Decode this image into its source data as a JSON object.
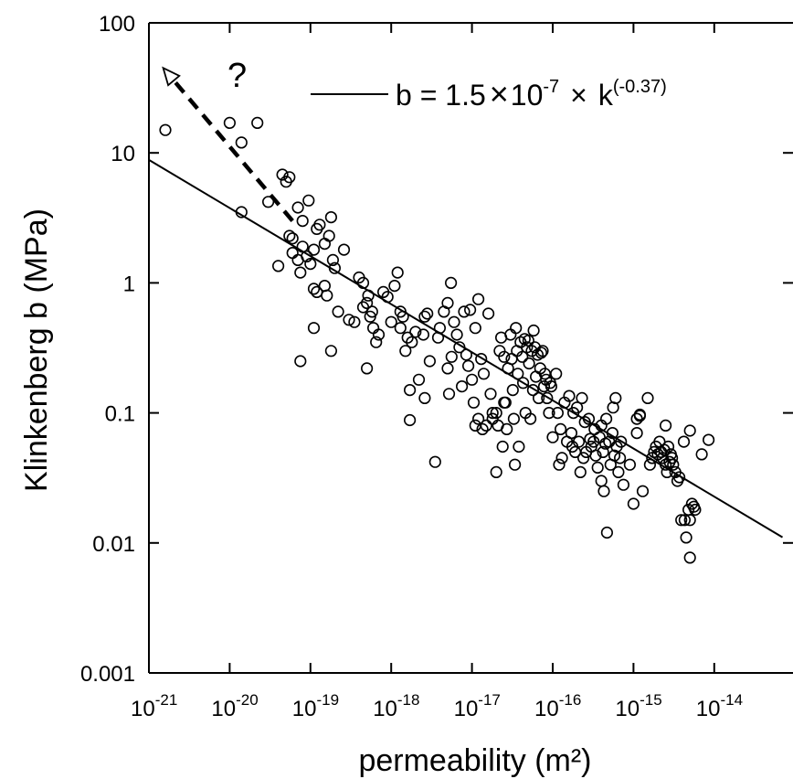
{
  "chart_data": {
    "type": "scatter",
    "title": "",
    "xlabel": "permeability (m²)",
    "ylabel": "Klinkenberg b (MPa)",
    "x_scale": "log",
    "y_scale": "log",
    "xlim": [
      1e-21,
      1e-13
    ],
    "ylim": [
      0.001,
      100
    ],
    "grid": false,
    "x_ticks": [
      {
        "base": "10",
        "exp": "-21"
      },
      {
        "base": "10",
        "exp": "-20"
      },
      {
        "base": "10",
        "exp": "-19"
      },
      {
        "base": "10",
        "exp": "-18"
      },
      {
        "base": "10",
        "exp": "-17"
      },
      {
        "base": "10",
        "exp": "-16"
      },
      {
        "base": "10",
        "exp": "-15"
      },
      {
        "base": "10",
        "exp": "-14"
      }
    ],
    "y_ticks": [
      "0.001",
      "0.01",
      "0.1",
      "1",
      "10",
      "100"
    ],
    "legend": {
      "placement": "top-right",
      "prefix": "b = 1.5",
      "times1": "×",
      "mid": "10",
      "exp1": "-7",
      "times2": "×",
      "var": "k",
      "exp2": "(-0.37)"
    },
    "fit_line": {
      "coefficient": 1.5e-07,
      "exponent": -0.37,
      "x_range": [
        1e-21,
        7e-14
      ]
    },
    "extrapolation": {
      "from": [
        6e-20,
        3.0
      ],
      "to": [
        1.5e-21,
        45
      ],
      "style": "dashed-arrow",
      "annotation": "?"
    },
    "series": [
      {
        "marker": "open-circle",
        "points": [
          [
            1.6e-21,
            15
          ],
          [
            1e-20,
            17
          ],
          [
            1.4e-20,
            12
          ],
          [
            2.2e-20,
            17
          ],
          [
            1.4e-20,
            3.5
          ],
          [
            3e-20,
            4.2
          ],
          [
            4.5e-20,
            6.8
          ],
          [
            5.5e-20,
            6.5
          ],
          [
            5e-20,
            6.0
          ],
          [
            4e-20,
            1.35
          ],
          [
            5.5e-20,
            2.3
          ],
          [
            6e-20,
            2.2
          ],
          [
            7e-20,
            3.8
          ],
          [
            8e-20,
            3.0
          ],
          [
            9.5e-20,
            4.3
          ],
          [
            6e-20,
            1.7
          ],
          [
            7e-20,
            1.5
          ],
          [
            8e-20,
            1.9
          ],
          [
            9e-20,
            1.6
          ],
          [
            1e-19,
            1.4
          ],
          [
            1.1e-19,
            1.8
          ],
          [
            1.2e-19,
            2.6
          ],
          [
            1.3e-19,
            2.8
          ],
          [
            1.5e-19,
            2.0
          ],
          [
            1.7e-19,
            2.3
          ],
          [
            1.8e-19,
            3.2
          ],
          [
            1.9e-19,
            1.5
          ],
          [
            2e-19,
            1.3
          ],
          [
            7.5e-20,
            1.2
          ],
          [
            1.1e-19,
            0.9
          ],
          [
            1.2e-19,
            0.85
          ],
          [
            1.6e-19,
            0.8
          ],
          [
            1.5e-19,
            0.95
          ],
          [
            1.1e-19,
            0.45
          ],
          [
            7.5e-20,
            0.25
          ],
          [
            1.8e-19,
            0.3
          ],
          [
            2.2e-19,
            0.6
          ],
          [
            2.6e-19,
            1.8
          ],
          [
            3e-19,
            0.52
          ],
          [
            3.5e-19,
            0.5
          ],
          [
            4e-19,
            1.1
          ],
          [
            4.5e-19,
            0.65
          ],
          [
            5e-19,
            0.7
          ],
          [
            5.5e-19,
            0.55
          ],
          [
            6e-19,
            0.45
          ],
          [
            6.5e-19,
            0.35
          ],
          [
            5e-19,
            0.22
          ],
          [
            4.5e-19,
            1.0
          ],
          [
            5.2e-19,
            0.8
          ],
          [
            5.8e-19,
            0.6
          ],
          [
            7e-19,
            0.4
          ],
          [
            8e-19,
            0.85
          ],
          [
            9e-19,
            0.78
          ],
          [
            1e-18,
            0.5
          ],
          [
            1.1e-18,
            0.95
          ],
          [
            1.2e-18,
            1.2
          ],
          [
            1.3e-18,
            0.45
          ],
          [
            1.3e-18,
            0.6
          ],
          [
            1.4e-18,
            0.55
          ],
          [
            1.5e-18,
            0.3
          ],
          [
            1.6e-18,
            0.38
          ],
          [
            1.7e-18,
            0.15
          ],
          [
            1.8e-18,
            0.35
          ],
          [
            1.7e-18,
            0.088
          ],
          [
            2e-18,
            0.42
          ],
          [
            2.2e-18,
            0.18
          ],
          [
            2.5e-18,
            0.4
          ],
          [
            2.6e-18,
            0.13
          ],
          [
            2.6e-18,
            0.55
          ],
          [
            2.8e-18,
            0.58
          ],
          [
            3e-18,
            0.25
          ],
          [
            3.5e-18,
            0.042
          ],
          [
            3.8e-18,
            0.38
          ],
          [
            4e-18,
            0.45
          ],
          [
            4.5e-18,
            0.6
          ],
          [
            5e-18,
            0.7
          ],
          [
            5e-18,
            0.22
          ],
          [
            5.2e-18,
            0.14
          ],
          [
            5.5e-18,
            1.0
          ],
          [
            5.6e-18,
            0.27
          ],
          [
            6e-18,
            0.5
          ],
          [
            6.5e-18,
            0.4
          ],
          [
            7e-18,
            0.32
          ],
          [
            7.5e-18,
            0.16
          ],
          [
            8e-18,
            0.6
          ],
          [
            8.5e-18,
            0.28
          ],
          [
            9e-18,
            0.23
          ],
          [
            9.5e-18,
            0.62
          ],
          [
            1e-17,
            0.18
          ],
          [
            1.05e-17,
            0.12
          ],
          [
            1.1e-17,
            0.45
          ],
          [
            1.1e-17,
            0.08
          ],
          [
            1.2e-17,
            0.75
          ],
          [
            1.2e-17,
            0.09
          ],
          [
            1.3e-17,
            0.26
          ],
          [
            1.35e-17,
            0.075
          ],
          [
            1.4e-17,
            0.2
          ],
          [
            1.5e-17,
            0.08
          ],
          [
            1.6e-17,
            0.58
          ],
          [
            1.7e-17,
            0.14
          ],
          [
            1.8e-17,
            0.1
          ],
          [
            1.8e-17,
            0.09
          ],
          [
            2e-17,
            0.1
          ],
          [
            2e-17,
            0.035
          ],
          [
            2.1e-17,
            0.08
          ],
          [
            2.2e-17,
            0.3
          ],
          [
            2.3e-17,
            0.38
          ],
          [
            2.4e-17,
            0.055
          ],
          [
            2.5e-17,
            0.27
          ],
          [
            2.5e-17,
            0.12
          ],
          [
            2.6e-17,
            0.12
          ],
          [
            2.7e-17,
            0.075
          ],
          [
            2.8e-17,
            0.22
          ],
          [
            3e-17,
            0.4
          ],
          [
            3.1e-17,
            0.26
          ],
          [
            3.2e-17,
            0.15
          ],
          [
            3.3e-17,
            0.09
          ],
          [
            3.4e-17,
            0.04
          ],
          [
            3.5e-17,
            0.45
          ],
          [
            3.6e-17,
            0.3
          ],
          [
            3.7e-17,
            0.2
          ],
          [
            3.8e-17,
            0.055
          ],
          [
            4e-17,
            0.35
          ],
          [
            4.2e-17,
            0.27
          ],
          [
            4.3e-17,
            0.17
          ],
          [
            4.5e-17,
            0.37
          ],
          [
            4.6e-17,
            0.1
          ],
          [
            4.8e-17,
            0.32
          ],
          [
            5e-17,
            0.36
          ],
          [
            5.1e-17,
            0.24
          ],
          [
            5.3e-17,
            0.09
          ],
          [
            5.5e-17,
            0.3
          ],
          [
            5.7e-17,
            0.15
          ],
          [
            5.8e-17,
            0.43
          ],
          [
            6e-17,
            0.32
          ],
          [
            6.2e-17,
            0.19
          ],
          [
            6.5e-17,
            0.28
          ],
          [
            6.7e-17,
            0.13
          ],
          [
            7e-17,
            0.22
          ],
          [
            7.2e-17,
            0.29
          ],
          [
            7.5e-17,
            0.3
          ],
          [
            7.8e-17,
            0.16
          ],
          [
            8e-17,
            0.2
          ],
          [
            8.3e-17,
            0.18
          ],
          [
            8.5e-17,
            0.13
          ],
          [
            9e-17,
            0.1
          ],
          [
            9.3e-17,
            0.17
          ],
          [
            9.6e-17,
            0.16
          ],
          [
            1e-16,
            0.065
          ],
          [
            1.1e-16,
            0.2
          ],
          [
            1.15e-16,
            0.1
          ],
          [
            1.2e-16,
            0.04
          ],
          [
            1.25e-16,
            0.075
          ],
          [
            1.3e-16,
            0.045
          ],
          [
            1.4e-16,
            0.12
          ],
          [
            1.5e-16,
            0.06
          ],
          [
            1.6e-16,
            0.135
          ],
          [
            1.7e-16,
            0.07
          ],
          [
            1.75e-16,
            0.055
          ],
          [
            1.8e-16,
            0.1
          ],
          [
            1.9e-16,
            0.05
          ],
          [
            2e-16,
            0.11
          ],
          [
            2.1e-16,
            0.06
          ],
          [
            2.2e-16,
            0.035
          ],
          [
            2.3e-16,
            0.13
          ],
          [
            2.4e-16,
            0.045
          ],
          [
            2.5e-16,
            0.085
          ],
          [
            2.6e-16,
            0.05
          ],
          [
            2.8e-16,
            0.09
          ],
          [
            2.9e-16,
            0.063
          ],
          [
            3e-16,
            0.055
          ],
          [
            3.2e-16,
            0.06
          ],
          [
            3.3e-16,
            0.075
          ],
          [
            3.4e-16,
            0.047
          ],
          [
            3.6e-16,
            0.038
          ],
          [
            3.8e-16,
            0.065
          ],
          [
            4e-16,
            0.08
          ],
          [
            4e-16,
            0.03
          ],
          [
            4.2e-16,
            0.05
          ],
          [
            4.3e-16,
            0.025
          ],
          [
            4.5e-16,
            0.058
          ],
          [
            4.6e-16,
            0.09
          ],
          [
            4.7e-16,
            0.012
          ],
          [
            5e-16,
            0.06
          ],
          [
            5.2e-16,
            0.04
          ],
          [
            5.5e-16,
            0.07
          ],
          [
            5.6e-16,
            0.11
          ],
          [
            5.8e-16,
            0.047
          ],
          [
            6e-16,
            0.13
          ],
          [
            6.2e-16,
            0.055
          ],
          [
            6.5e-16,
            0.035
          ],
          [
            6.8e-16,
            0.045
          ],
          [
            7e-16,
            0.06
          ],
          [
            7.5e-16,
            0.028
          ],
          [
            9e-16,
            0.04
          ],
          [
            1e-15,
            0.02
          ],
          [
            1.1e-15,
            0.09
          ],
          [
            1.1e-15,
            0.07
          ],
          [
            1.2e-15,
            0.097
          ],
          [
            1.2e-15,
            0.095
          ],
          [
            1.3e-15,
            0.025
          ],
          [
            1.5e-15,
            0.13
          ],
          [
            1.6e-15,
            0.04
          ],
          [
            1.7e-15,
            0.045
          ],
          [
            1.8e-15,
            0.05
          ],
          [
            1.9e-15,
            0.055
          ],
          [
            2e-15,
            0.048
          ],
          [
            2.1e-15,
            0.06
          ],
          [
            2.2e-15,
            0.05
          ],
          [
            2.3e-15,
            0.045
          ],
          [
            2.4e-15,
            0.052
          ],
          [
            2.5e-15,
            0.04
          ],
          [
            2.6e-15,
            0.035
          ],
          [
            2.7e-15,
            0.055
          ],
          [
            2.8e-15,
            0.042
          ],
          [
            2.9e-15,
            0.048
          ],
          [
            3e-15,
            0.045
          ],
          [
            3.1e-15,
            0.04
          ],
          [
            3.3e-15,
            0.035
          ],
          [
            2.5e-15,
            0.08
          ],
          [
            3.5e-15,
            0.03
          ],
          [
            3.7e-15,
            0.032
          ],
          [
            3.9e-15,
            0.015
          ],
          [
            4.2e-15,
            0.06
          ],
          [
            4.3e-15,
            0.015
          ],
          [
            4.5e-15,
            0.011
          ],
          [
            4.8e-15,
            0.018
          ],
          [
            5e-15,
            0.015
          ],
          [
            5.3e-15,
            0.02
          ],
          [
            5.6e-15,
            0.019
          ],
          [
            5.8e-15,
            0.018
          ],
          [
            5e-15,
            0.0077
          ],
          [
            5e-15,
            0.073
          ],
          [
            7e-15,
            0.048
          ],
          [
            8.5e-15,
            0.062
          ]
        ]
      }
    ]
  }
}
